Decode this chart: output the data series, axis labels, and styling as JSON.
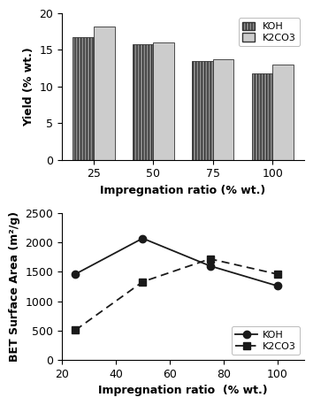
{
  "bar_categories": [
    25,
    50,
    75,
    100
  ],
  "bar_koh": [
    16.7,
    15.8,
    13.5,
    11.8
  ],
  "bar_k2co3": [
    18.2,
    16.0,
    13.7,
    13.0
  ],
  "bar_ylim": [
    0,
    20
  ],
  "bar_yticks": [
    0,
    5,
    10,
    15,
    20
  ],
  "bar_ylabel": "Yield (% wt.)",
  "bar_xlabel": "Impregnation ratio (% wt.)",
  "bar_width": 0.35,
  "bar_color_koh": "#888888",
  "bar_color_k2co3": "#aaaaaa",
  "line_x": [
    25,
    50,
    75,
    100
  ],
  "line_koh": [
    1460,
    2070,
    1600,
    1260
  ],
  "line_k2co3": [
    505,
    1330,
    1720,
    1460
  ],
  "line_ylim": [
    0,
    2500
  ],
  "line_yticks": [
    0,
    500,
    1000,
    1500,
    2000,
    2500
  ],
  "line_ylabel": "BET Surface Area (m²/g)",
  "line_xlabel": "Impregnation ratio  (% wt.)",
  "line_xlim": [
    20,
    110
  ],
  "line_xticks": [
    20,
    40,
    60,
    80,
    100
  ],
  "color_line": "#1a1a1a",
  "background": "#ffffff",
  "legend_bar_koh": "KOH",
  "legend_bar_k2co3": "K2CO3",
  "legend_line_koh": "KOH",
  "legend_line_k2co3": "K2CO3"
}
